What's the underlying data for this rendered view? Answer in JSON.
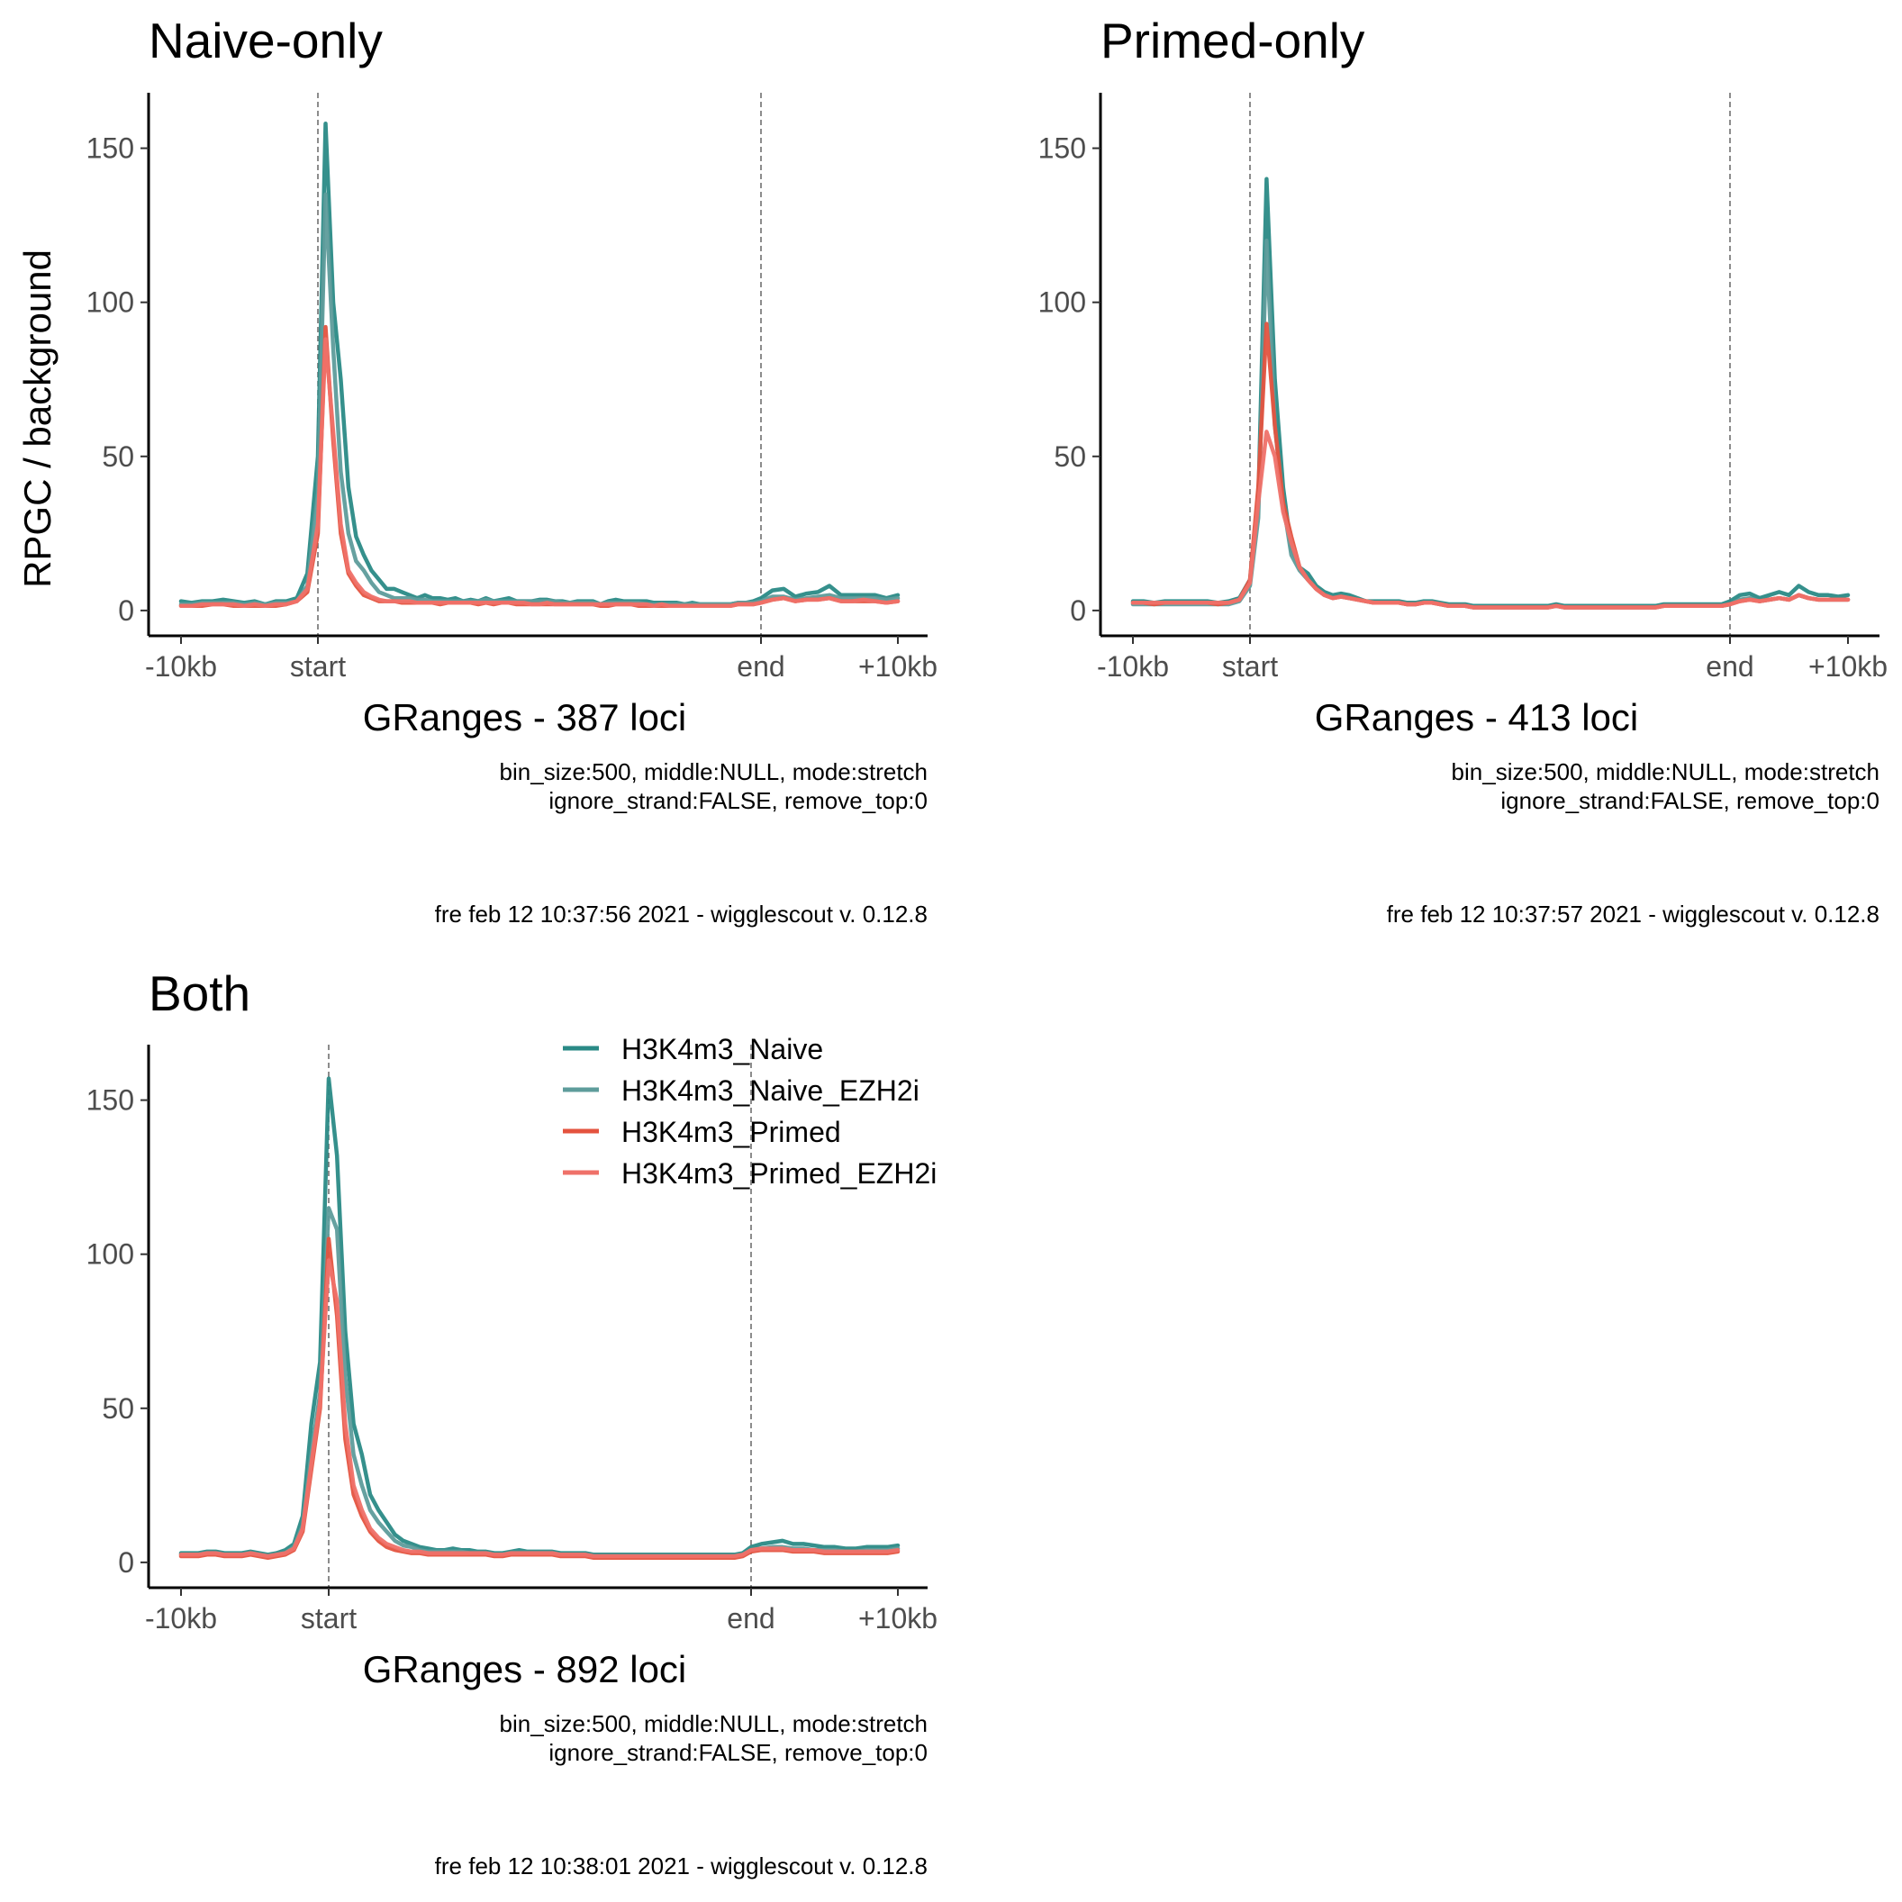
{
  "figure": {
    "ylabel": "RPGC / background",
    "legend": {
      "placement": "inside-top-right of Both panel"
    }
  },
  "chart_data": [
    {
      "type": "line",
      "title": "Naive-only",
      "xlabel": "GRanges - 387 loci",
      "ylabel": "RPGC / background",
      "x_ticks": [
        "-10kb",
        "start",
        "end",
        "+10kb"
      ],
      "y_ticks": [
        "0",
        "50",
        "100",
        "150"
      ],
      "ylim": [
        -5,
        168
      ],
      "grid": false,
      "caption_lines": [
        "bin_size:500, middle:NULL, mode:stretch",
        "ignore_strand:FALSE, remove_top:0"
      ],
      "timestamp": "fre feb 12 10:37:56 2021 - wigglescout v. 0.12.8",
      "series": [
        {
          "name": "H3K4m3_Naive",
          "color": "#2a8a86",
          "values": [
            3,
            2.5,
            3,
            3,
            3.5,
            3,
            2.5,
            3,
            2,
            3,
            3,
            4,
            12,
            50,
            158,
            100,
            75,
            40,
            24,
            18,
            13,
            10,
            7,
            7,
            6,
            5,
            4,
            5,
            4,
            4,
            3.5,
            4,
            3,
            3.5,
            3,
            4,
            3,
            3.5,
            4,
            3,
            3,
            3,
            3.5,
            3.5,
            3,
            3,
            2.5,
            3,
            3,
            3,
            2,
            3,
            3.5,
            3,
            3,
            3,
            3,
            2.5,
            2.5,
            2.5,
            2.5,
            2,
            2.5,
            2,
            2,
            2,
            2,
            2,
            2.5,
            2.5,
            3,
            4,
            6.5,
            7,
            4.5,
            5.5,
            6,
            8,
            5,
            5,
            5,
            5,
            4,
            5
          ]
        },
        {
          "name": "H3K4m3_Naive_EZH2i",
          "color": "#5e9c9b",
          "values": [
            2,
            2,
            2.5,
            2.5,
            2.5,
            2.5,
            2,
            2.5,
            2,
            2.5,
            2.5,
            3,
            8,
            38,
            135,
            85,
            45,
            25,
            16,
            13,
            9,
            6,
            5,
            4,
            4,
            4,
            3.5,
            3.5,
            3,
            3,
            3,
            3,
            3,
            3,
            3,
            3.5,
            3,
            3,
            3,
            3,
            3,
            3,
            3,
            3,
            3,
            2.5,
            2.5,
            2.5,
            2.5,
            2.5,
            2,
            2.5,
            2.5,
            2.5,
            2.5,
            2.5,
            2,
            2,
            2,
            2,
            2,
            2,
            2,
            2,
            2,
            2,
            2,
            2,
            2.5,
            2.5,
            2.5,
            3,
            4.5,
            4.5,
            3.5,
            4,
            4.5,
            5,
            4,
            4,
            4,
            4,
            3.5,
            4
          ]
        },
        {
          "name": "H3K4m3_Primed",
          "color": "#e4533f",
          "values": [
            1.5,
            1.5,
            1.5,
            2,
            2,
            1.5,
            1.5,
            1.5,
            1.5,
            1.5,
            2,
            3,
            6,
            25,
            92,
            55,
            25,
            12,
            8,
            5,
            4,
            3,
            3,
            3,
            2.5,
            2.5,
            2.5,
            2.5,
            2.5,
            2,
            2.5,
            2.5,
            2.5,
            2.5,
            2,
            2.5,
            2,
            2.5,
            2.5,
            2,
            2,
            2,
            2,
            2,
            2,
            2,
            2,
            2,
            2,
            2,
            1.5,
            1.5,
            2,
            2,
            2,
            1.5,
            1.5,
            1.5,
            1.5,
            1.5,
            1.5,
            1.5,
            1.5,
            1.5,
            1.5,
            1.5,
            1.5,
            1.5,
            2,
            2,
            2,
            2.5,
            3.5,
            4,
            3,
            3.5,
            3.5,
            4,
            3,
            3,
            3,
            3,
            2.5,
            3
          ]
        },
        {
          "name": "H3K4m3_Primed_EZH2i",
          "color": "#ef7169",
          "values": [
            1.5,
            1.5,
            2,
            2,
            2,
            2,
            1.5,
            2,
            1.5,
            2,
            2,
            3,
            7,
            28,
            88,
            58,
            28,
            13,
            9,
            6,
            4.5,
            3.5,
            3,
            3,
            3,
            3,
            2.5,
            2.5,
            2.5,
            2.5,
            2.5,
            2.5,
            2.5,
            2.5,
            2.5,
            2.5,
            2.5,
            2.5,
            2.5,
            2.5,
            2.5,
            2,
            2,
            2.5,
            2,
            2,
            2,
            2,
            2,
            2,
            2,
            2,
            2,
            2,
            2,
            2,
            2,
            1.5,
            2,
            1.5,
            1.5,
            1.5,
            1.5,
            1.5,
            1.5,
            1.5,
            1.5,
            1.5,
            2,
            2,
            2,
            2.5,
            3.5,
            4,
            3,
            3.5,
            3.5,
            4,
            3,
            3,
            3.5,
            3,
            2.5,
            3
          ]
        }
      ]
    },
    {
      "type": "line",
      "title": "Primed-only",
      "xlabel": "GRanges - 413 loci",
      "ylabel": "",
      "x_ticks": [
        "-10kb",
        "start",
        "end",
        "+10kb"
      ],
      "y_ticks": [
        "0",
        "50",
        "100",
        "150"
      ],
      "ylim": [
        -5,
        168
      ],
      "grid": false,
      "caption_lines": [
        "bin_size:500, middle:NULL, mode:stretch",
        "ignore_strand:FALSE, remove_top:0"
      ],
      "timestamp": "fre feb 12 10:37:57 2021 - wigglescout v. 0.12.8",
      "series": [
        {
          "name": "H3K4m3_Naive",
          "color": "#2a8a86",
          "values": [
            3,
            3,
            2.5,
            3,
            3,
            3,
            3,
            3,
            2.5,
            3,
            4,
            10,
            35,
            140,
            75,
            40,
            20,
            14,
            12,
            8,
            6,
            5,
            5.5,
            5,
            4,
            3,
            3,
            3,
            3,
            3,
            2.5,
            2.5,
            3,
            3,
            2.5,
            2,
            2,
            2,
            1.5,
            1.5,
            1.5,
            1.5,
            1.5,
            1.5,
            1.5,
            1.5,
            1.5,
            1.5,
            2,
            1.5,
            1.5,
            1.5,
            1.5,
            1.5,
            1.5,
            1.5,
            1.5,
            1.5,
            1.5,
            1.5,
            1.5,
            2,
            2,
            2,
            2,
            2,
            2,
            2,
            2,
            3,
            5,
            5.5,
            4,
            5,
            6,
            5,
            8,
            6,
            5,
            5,
            4.5,
            5
          ]
        },
        {
          "name": "H3K4m3_Naive_EZH2i",
          "color": "#5e9c9b",
          "values": [
            2,
            2,
            2,
            2,
            2,
            2,
            2,
            2,
            2,
            2,
            3,
            8,
            30,
            120,
            60,
            35,
            18,
            13,
            10,
            7,
            5,
            4,
            4.5,
            4,
            3.5,
            3,
            2.5,
            2.5,
            2.5,
            2.5,
            2,
            2,
            2.5,
            2.5,
            2,
            1.5,
            1.5,
            1.5,
            1,
            1,
            1,
            1,
            1,
            1,
            1,
            1,
            1,
            1,
            1.5,
            1,
            1,
            1,
            1,
            1,
            1,
            1,
            1,
            1,
            1,
            1,
            1,
            1.5,
            1.5,
            1.5,
            1.5,
            1.5,
            1.5,
            1.5,
            1.5,
            2,
            3.5,
            4,
            3,
            3.5,
            4,
            3.5,
            5,
            4,
            3.5,
            3.5,
            3.5,
            3.5
          ]
        },
        {
          "name": "H3K4m3_Primed",
          "color": "#e4533f",
          "values": [
            2.5,
            2.5,
            2,
            2.5,
            2.5,
            2.5,
            2.5,
            2.5,
            2,
            2.5,
            3.5,
            10,
            40,
            93,
            60,
            35,
            24,
            14,
            10,
            7,
            5,
            4,
            4.5,
            4,
            3.5,
            3,
            2.5,
            2.5,
            2.5,
            2.5,
            2,
            2,
            2.5,
            2.5,
            2,
            1.5,
            1.5,
            1.5,
            1,
            1,
            1,
            1,
            1,
            1,
            1,
            1,
            1,
            1,
            1.5,
            1,
            1,
            1,
            1,
            1,
            1,
            1,
            1,
            1,
            1,
            1,
            1,
            1.5,
            1.5,
            1.5,
            1.5,
            1.5,
            1.5,
            1.5,
            1.5,
            2,
            3,
            3.5,
            3,
            3.5,
            4,
            3.5,
            5,
            4,
            3.5,
            3.5,
            3.5,
            3.5
          ]
        },
        {
          "name": "H3K4m3_Primed_EZH2i",
          "color": "#ef7169",
          "values": [
            2.5,
            2.5,
            2.5,
            2.5,
            2.5,
            2.5,
            2.5,
            2.5,
            2.5,
            2.5,
            3.5,
            9,
            35,
            58,
            50,
            32,
            22,
            14,
            10,
            7,
            5,
            4,
            4.5,
            4,
            3.5,
            3,
            2.5,
            2.5,
            2.5,
            2.5,
            2,
            2,
            2.5,
            2.5,
            2,
            1.5,
            1.5,
            1.5,
            1,
            1,
            1,
            1,
            1,
            1,
            1,
            1,
            1,
            1,
            1.5,
            1,
            1,
            1,
            1,
            1,
            1,
            1,
            1,
            1,
            1,
            1,
            1,
            1.5,
            1.5,
            1.5,
            1.5,
            1.5,
            1.5,
            1.5,
            1.5,
            2,
            3,
            3.5,
            3,
            3.5,
            4,
            3.5,
            5,
            4,
            3.5,
            3.5,
            3.5,
            3.5
          ]
        }
      ]
    },
    {
      "type": "line",
      "title": "Both",
      "xlabel": "GRanges - 892 loci",
      "ylabel": "",
      "x_ticks": [
        "-10kb",
        "start",
        "end",
        "+10kb"
      ],
      "y_ticks": [
        "0",
        "50",
        "100",
        "150"
      ],
      "ylim": [
        -5,
        168
      ],
      "grid": false,
      "caption_lines": [
        "bin_size:500, middle:NULL, mode:stretch",
        "ignore_strand:FALSE, remove_top:0"
      ],
      "timestamp": "fre feb 12 10:38:01 2021 - wigglescout v. 0.12.8",
      "series": [
        {
          "name": "H3K4m3_Naive",
          "color": "#2a8a86",
          "values": [
            3,
            3,
            3,
            3.5,
            3.5,
            3,
            3,
            3,
            3.5,
            3,
            2.5,
            3,
            4,
            6,
            15,
            45,
            65,
            157,
            132,
            75,
            45,
            35,
            22,
            17,
            13,
            9,
            7,
            6,
            5,
            4.5,
            4,
            4,
            4.5,
            4,
            4,
            3.5,
            3.5,
            3,
            3,
            3.5,
            4,
            3.5,
            3.5,
            3.5,
            3.5,
            3,
            3,
            3,
            3,
            2.5,
            2.5,
            2.5,
            2.5,
            2.5,
            2.5,
            2.5,
            2.5,
            2.5,
            2.5,
            2.5,
            2.5,
            2.5,
            2.5,
            2.5,
            2.5,
            2.5,
            2.5,
            3,
            5,
            6,
            6.5,
            7,
            6,
            6,
            5.5,
            5,
            5,
            4.5,
            4.5,
            5,
            5,
            5,
            5.5
          ]
        },
        {
          "name": "H3K4m3_Naive_EZH2i",
          "color": "#5e9c9b",
          "values": [
            2.5,
            2.5,
            2.5,
            3,
            3,
            2.5,
            2.5,
            2.5,
            3,
            2.5,
            2,
            2.5,
            3,
            5,
            12,
            35,
            55,
            115,
            108,
            60,
            35,
            25,
            17,
            13,
            10,
            7,
            5.5,
            5,
            4,
            3.5,
            3.5,
            3.5,
            3.5,
            3.5,
            3,
            3,
            3,
            2.5,
            2.5,
            3,
            3,
            3,
            3,
            3,
            3,
            2.5,
            2.5,
            2.5,
            2.5,
            2,
            2,
            2,
            2,
            2,
            2,
            2,
            2,
            2,
            2,
            2,
            2,
            2,
            2,
            2,
            2,
            2,
            2,
            2.5,
            4,
            4.5,
            5,
            5,
            4.5,
            4.5,
            4,
            4,
            4,
            3.5,
            3.5,
            4,
            4,
            4,
            4.5
          ]
        },
        {
          "name": "H3K4m3_Primed",
          "color": "#e4533f",
          "values": [
            2,
            2,
            2,
            2.5,
            2.5,
            2,
            2,
            2,
            2.5,
            2,
            1.5,
            2,
            2.5,
            4,
            10,
            30,
            50,
            105,
            80,
            40,
            22,
            15,
            10,
            7,
            5,
            4,
            3.5,
            3,
            3,
            2.5,
            2.5,
            2.5,
            2.5,
            2.5,
            2.5,
            2.5,
            2.5,
            2,
            2,
            2.5,
            2.5,
            2.5,
            2.5,
            2.5,
            2.5,
            2,
            2,
            2,
            2,
            1.5,
            1.5,
            1.5,
            1.5,
            1.5,
            1.5,
            1.5,
            1.5,
            1.5,
            1.5,
            1.5,
            1.5,
            1.5,
            1.5,
            1.5,
            1.5,
            1.5,
            1.5,
            2,
            3.5,
            4,
            4,
            4,
            3.5,
            3.5,
            3.5,
            3,
            3,
            3,
            3,
            3,
            3,
            3,
            3.5
          ]
        },
        {
          "name": "H3K4m3_Primed_EZH2i",
          "color": "#ef7169",
          "values": [
            2.5,
            2.5,
            2.5,
            3,
            3,
            2.5,
            2.5,
            2.5,
            3,
            2.5,
            2,
            2.5,
            3,
            4.5,
            11,
            32,
            52,
            98,
            85,
            45,
            25,
            17,
            11,
            8,
            6,
            5,
            4,
            3.5,
            3.5,
            3,
            3,
            3,
            3,
            3,
            3,
            3,
            3,
            2.5,
            2.5,
            3,
            3,
            3,
            3,
            3,
            3,
            2.5,
            2.5,
            2.5,
            2.5,
            2,
            2,
            2,
            2,
            2,
            2,
            2,
            2,
            2,
            2,
            2,
            2,
            2,
            2,
            2,
            2,
            2,
            2,
            2.5,
            4,
            4.5,
            4.5,
            4.5,
            4,
            4,
            4,
            3.5,
            3.5,
            3.5,
            3.5,
            3.5,
            3.5,
            3.5,
            4
          ]
        }
      ]
    }
  ]
}
